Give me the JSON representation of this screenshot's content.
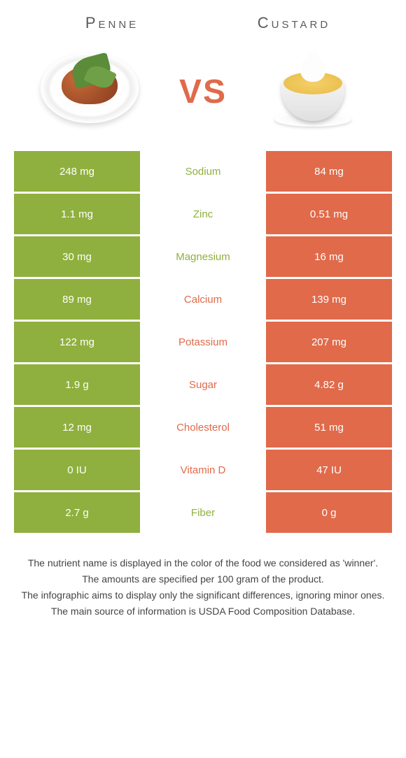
{
  "titles": {
    "left": "Penne",
    "right": "Custard"
  },
  "vs_label": "VS",
  "colors": {
    "left": "#8fb03e",
    "right": "#e06a4a",
    "mid_bg": "#ffffff",
    "vs": "#e06a4a",
    "row_gap": 3
  },
  "rows": [
    {
      "left": "248 mg",
      "label": "Sodium",
      "right": "84 mg",
      "winner": "left"
    },
    {
      "left": "1.1 mg",
      "label": "Zinc",
      "right": "0.51 mg",
      "winner": "left"
    },
    {
      "left": "30 mg",
      "label": "Magnesium",
      "right": "16 mg",
      "winner": "left"
    },
    {
      "left": "89 mg",
      "label": "Calcium",
      "right": "139 mg",
      "winner": "right"
    },
    {
      "left": "122 mg",
      "label": "Potassium",
      "right": "207 mg",
      "winner": "right"
    },
    {
      "left": "1.9 g",
      "label": "Sugar",
      "right": "4.82 g",
      "winner": "right"
    },
    {
      "left": "12 mg",
      "label": "Cholesterol",
      "right": "51 mg",
      "winner": "right"
    },
    {
      "left": "0 IU",
      "label": "Vitamin D",
      "right": "47 IU",
      "winner": "right"
    },
    {
      "left": "2.7 g",
      "label": "Fiber",
      "right": "0 g",
      "winner": "left"
    }
  ],
  "footer": [
    "The nutrient name is displayed in the color of the food we considered as 'winner'.",
    "The amounts are specified per 100 gram of the product.",
    "The infographic aims to display only the significant differences, ignoring minor ones.",
    "The main source of information is USDA Food Composition Database."
  ]
}
